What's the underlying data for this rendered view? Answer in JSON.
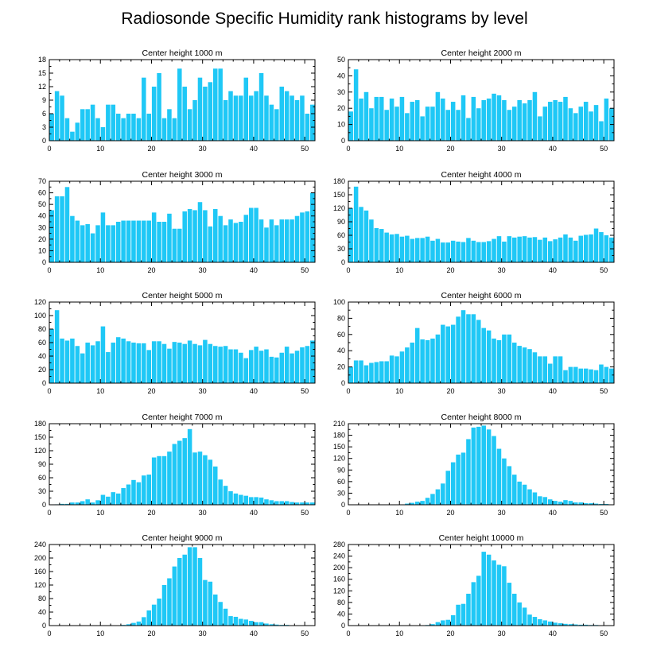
{
  "figure": {
    "title": "Radiosonde Specific Humidity rank histograms by level",
    "bar_color": "#1fc8f6",
    "axis_color": "#000000"
  },
  "chart_data": [
    {
      "type": "bar",
      "title": "Center height 1000 m",
      "xlabel": "",
      "ylabel": "",
      "xlim": [
        0,
        52
      ],
      "ylim": [
        0,
        18
      ],
      "xticks": [
        0,
        10,
        20,
        30,
        40,
        50
      ],
      "yticks": [
        0,
        3,
        6,
        9,
        12,
        15,
        18
      ],
      "x": [
        0,
        1,
        2,
        3,
        4,
        5,
        6,
        7,
        8,
        9,
        10,
        11,
        12,
        13,
        14,
        15,
        16,
        17,
        18,
        19,
        20,
        21,
        22,
        23,
        24,
        25,
        26,
        27,
        28,
        29,
        30,
        31,
        32,
        33,
        34,
        35,
        36,
        37,
        38,
        39,
        40,
        41,
        42,
        43,
        44,
        45,
        46,
        47,
        48,
        49,
        50,
        51
      ],
      "values": [
        6,
        11,
        10,
        5,
        2,
        4,
        7,
        7,
        8,
        5,
        3,
        8,
        8,
        6,
        5,
        6,
        6,
        5,
        14,
        6,
        12,
        15,
        5,
        7,
        5,
        16,
        12,
        7,
        9,
        14,
        12,
        13,
        16,
        16,
        9,
        11,
        10,
        10,
        14,
        10,
        11,
        15,
        10,
        8,
        7,
        12,
        11,
        10,
        9,
        10,
        6,
        8
      ]
    },
    {
      "type": "bar",
      "title": "Center height 2000 m",
      "xlabel": "",
      "ylabel": "",
      "xlim": [
        0,
        52
      ],
      "ylim": [
        0,
        50
      ],
      "xticks": [
        0,
        10,
        20,
        30,
        40,
        50
      ],
      "yticks": [
        0,
        10,
        20,
        30,
        40,
        50
      ],
      "x": [
        0,
        1,
        2,
        3,
        4,
        5,
        6,
        7,
        8,
        9,
        10,
        11,
        12,
        13,
        14,
        15,
        16,
        17,
        18,
        19,
        20,
        21,
        22,
        23,
        24,
        25,
        26,
        27,
        28,
        29,
        30,
        31,
        32,
        33,
        34,
        35,
        36,
        37,
        38,
        39,
        40,
        41,
        42,
        43,
        44,
        45,
        46,
        47,
        48,
        49,
        50,
        51
      ],
      "values": [
        18,
        44,
        26,
        30,
        20,
        27,
        27,
        19,
        26,
        21,
        27,
        17,
        24,
        25,
        15,
        21,
        21,
        30,
        26,
        19,
        24,
        19,
        28,
        14,
        27,
        20,
        25,
        26,
        29,
        28,
        25,
        19,
        21,
        25,
        23,
        25,
        30,
        15,
        21,
        24,
        25,
        24,
        27,
        20,
        17,
        21,
        24,
        18,
        22,
        12,
        26,
        20
      ]
    },
    {
      "type": "bar",
      "title": "Center height 3000 m",
      "xlabel": "",
      "ylabel": "",
      "xlim": [
        0,
        52
      ],
      "ylim": [
        0,
        70
      ],
      "xticks": [
        0,
        10,
        20,
        30,
        40,
        50
      ],
      "yticks": [
        0,
        10,
        20,
        30,
        40,
        50,
        60,
        70
      ],
      "x": [
        0,
        1,
        2,
        3,
        4,
        5,
        6,
        7,
        8,
        9,
        10,
        11,
        12,
        13,
        14,
        15,
        16,
        17,
        18,
        19,
        20,
        21,
        22,
        23,
        24,
        25,
        26,
        27,
        28,
        29,
        30,
        31,
        32,
        33,
        34,
        35,
        36,
        37,
        38,
        39,
        40,
        41,
        42,
        43,
        44,
        45,
        46,
        47,
        48,
        49,
        50,
        51
      ],
      "values": [
        45,
        57,
        57,
        65,
        40,
        36,
        32,
        33,
        25,
        32,
        43,
        32,
        32,
        35,
        36,
        36,
        36,
        36,
        36,
        36,
        43,
        35,
        35,
        42,
        29,
        29,
        44,
        46,
        45,
        52,
        45,
        31,
        46,
        40,
        32,
        37,
        34,
        35,
        41,
        47,
        47,
        37,
        30,
        37,
        32,
        37,
        37,
        37,
        40,
        43,
        44,
        60
      ]
    },
    {
      "type": "bar",
      "title": "Center height 4000 m",
      "xlabel": "",
      "ylabel": "",
      "xlim": [
        0,
        52
      ],
      "ylim": [
        0,
        180
      ],
      "xticks": [
        0,
        10,
        20,
        30,
        40,
        50
      ],
      "yticks": [
        0,
        30,
        60,
        90,
        120,
        150,
        180
      ],
      "x": [
        0,
        1,
        2,
        3,
        4,
        5,
        6,
        7,
        8,
        9,
        10,
        11,
        12,
        13,
        14,
        15,
        16,
        17,
        18,
        19,
        20,
        21,
        22,
        23,
        24,
        25,
        26,
        27,
        28,
        29,
        30,
        31,
        32,
        33,
        34,
        35,
        36,
        37,
        38,
        39,
        40,
        41,
        42,
        43,
        44,
        45,
        46,
        47,
        48,
        49,
        50,
        51
      ],
      "values": [
        120,
        168,
        123,
        115,
        95,
        76,
        74,
        66,
        62,
        63,
        57,
        59,
        52,
        54,
        54,
        57,
        48,
        52,
        44,
        44,
        48,
        46,
        45,
        54,
        48,
        45,
        45,
        47,
        52,
        58,
        46,
        58,
        55,
        57,
        58,
        55,
        56,
        50,
        55,
        47,
        51,
        55,
        62,
        55,
        48,
        59,
        61,
        62,
        75,
        67,
        60,
        55
      ]
    },
    {
      "type": "bar",
      "title": "Center height 5000 m",
      "xlabel": "",
      "ylabel": "",
      "xlim": [
        0,
        52
      ],
      "ylim": [
        0,
        120
      ],
      "xticks": [
        0,
        10,
        20,
        30,
        40,
        50
      ],
      "yticks": [
        0,
        20,
        40,
        60,
        80,
        100,
        120
      ],
      "x": [
        0,
        1,
        2,
        3,
        4,
        5,
        6,
        7,
        8,
        9,
        10,
        11,
        12,
        13,
        14,
        15,
        16,
        17,
        18,
        19,
        20,
        21,
        22,
        23,
        24,
        25,
        26,
        27,
        28,
        29,
        30,
        31,
        32,
        33,
        34,
        35,
        36,
        37,
        38,
        39,
        40,
        41,
        42,
        43,
        44,
        45,
        46,
        47,
        48,
        49,
        50,
        51
      ],
      "values": [
        80,
        108,
        66,
        63,
        66,
        55,
        44,
        60,
        56,
        62,
        84,
        46,
        60,
        68,
        66,
        62,
        60,
        59,
        59,
        49,
        62,
        62,
        58,
        51,
        61,
        60,
        58,
        63,
        58,
        56,
        64,
        58,
        55,
        54,
        55,
        50,
        50,
        45,
        37,
        49,
        54,
        48,
        50,
        39,
        38,
        45,
        54,
        44,
        48,
        53,
        55,
        63
      ]
    },
    {
      "type": "bar",
      "title": "Center height 6000 m",
      "xlabel": "",
      "ylabel": "",
      "xlim": [
        0,
        52
      ],
      "ylim": [
        0,
        100
      ],
      "xticks": [
        0,
        10,
        20,
        30,
        40,
        50
      ],
      "yticks": [
        0,
        20,
        40,
        60,
        80,
        100
      ],
      "x": [
        0,
        1,
        2,
        3,
        4,
        5,
        6,
        7,
        8,
        9,
        10,
        11,
        12,
        13,
        14,
        15,
        16,
        17,
        18,
        19,
        20,
        21,
        22,
        23,
        24,
        25,
        26,
        27,
        28,
        29,
        30,
        31,
        32,
        33,
        34,
        35,
        36,
        37,
        38,
        39,
        40,
        41,
        42,
        43,
        44,
        45,
        46,
        47,
        48,
        49,
        50,
        51
      ],
      "values": [
        20,
        28,
        28,
        22,
        25,
        26,
        27,
        27,
        34,
        33,
        39,
        44,
        50,
        68,
        54,
        53,
        55,
        60,
        72,
        70,
        72,
        82,
        90,
        85,
        85,
        78,
        68,
        65,
        55,
        53,
        60,
        60,
        50,
        46,
        44,
        42,
        38,
        33,
        33,
        24,
        33,
        33,
        16,
        20,
        20,
        18,
        18,
        17,
        16,
        23,
        20,
        18
      ]
    },
    {
      "type": "bar",
      "title": "Center height 7000 m",
      "xlabel": "",
      "ylabel": "",
      "xlim": [
        0,
        52
      ],
      "ylim": [
        0,
        180
      ],
      "xticks": [
        0,
        10,
        20,
        30,
        40,
        50
      ],
      "yticks": [
        0,
        30,
        60,
        90,
        120,
        150,
        180
      ],
      "x": [
        0,
        1,
        2,
        3,
        4,
        5,
        6,
        7,
        8,
        9,
        10,
        11,
        12,
        13,
        14,
        15,
        16,
        17,
        18,
        19,
        20,
        21,
        22,
        23,
        24,
        25,
        26,
        27,
        28,
        29,
        30,
        31,
        32,
        33,
        34,
        35,
        36,
        37,
        38,
        39,
        40,
        41,
        42,
        43,
        44,
        45,
        46,
        47,
        48,
        49,
        50,
        51
      ],
      "values": [
        0,
        1,
        2,
        2,
        5,
        5,
        8,
        12,
        5,
        10,
        22,
        18,
        28,
        25,
        37,
        45,
        55,
        50,
        65,
        67,
        105,
        108,
        108,
        118,
        135,
        142,
        148,
        168,
        116,
        118,
        110,
        100,
        85,
        56,
        42,
        30,
        25,
        22,
        20,
        17,
        17,
        16,
        12,
        10,
        8,
        8,
        8,
        6,
        5,
        5,
        5,
        5
      ]
    },
    {
      "type": "bar",
      "title": "Center height 8000 m",
      "xlabel": "",
      "ylabel": "",
      "xlim": [
        0,
        52
      ],
      "ylim": [
        0,
        210
      ],
      "xticks": [
        0,
        10,
        20,
        30,
        40,
        50
      ],
      "yticks": [
        0,
        30,
        60,
        90,
        120,
        150,
        180,
        210
      ],
      "x": [
        0,
        1,
        2,
        3,
        4,
        5,
        6,
        7,
        8,
        9,
        10,
        11,
        12,
        13,
        14,
        15,
        16,
        17,
        18,
        19,
        20,
        21,
        22,
        23,
        24,
        25,
        26,
        27,
        28,
        29,
        30,
        31,
        32,
        33,
        34,
        35,
        36,
        37,
        38,
        39,
        40,
        41,
        42,
        43,
        44,
        45,
        46,
        47,
        48,
        49,
        50,
        51
      ],
      "values": [
        0,
        0,
        0,
        0,
        0,
        0,
        0,
        0,
        0,
        0,
        1,
        3,
        5,
        8,
        10,
        18,
        28,
        40,
        55,
        88,
        110,
        130,
        135,
        170,
        200,
        202,
        205,
        195,
        178,
        145,
        120,
        100,
        78,
        60,
        52,
        40,
        32,
        22,
        20,
        14,
        10,
        8,
        12,
        10,
        6,
        6,
        4,
        4,
        3,
        2,
        2,
        1
      ]
    },
    {
      "type": "bar",
      "title": "Center height 9000 m",
      "xlabel": "",
      "ylabel": "",
      "xlim": [
        0,
        52
      ],
      "ylim": [
        0,
        240
      ],
      "xticks": [
        0,
        10,
        20,
        30,
        40,
        50
      ],
      "yticks": [
        0,
        40,
        80,
        120,
        160,
        200,
        240
      ],
      "x": [
        0,
        1,
        2,
        3,
        4,
        5,
        6,
        7,
        8,
        9,
        10,
        11,
        12,
        13,
        14,
        15,
        16,
        17,
        18,
        19,
        20,
        21,
        22,
        23,
        24,
        25,
        26,
        27,
        28,
        29,
        30,
        31,
        32,
        33,
        34,
        35,
        36,
        37,
        38,
        39,
        40,
        41,
        42,
        43,
        44,
        45,
        46,
        47,
        48,
        49,
        50,
        51
      ],
      "values": [
        0,
        0,
        0,
        0,
        0,
        0,
        0,
        0,
        0,
        0,
        0,
        0,
        0,
        1,
        2,
        4,
        8,
        12,
        25,
        45,
        62,
        80,
        120,
        140,
        175,
        200,
        210,
        232,
        232,
        200,
        135,
        130,
        92,
        70,
        50,
        28,
        26,
        20,
        18,
        14,
        10,
        10,
        6,
        4,
        3,
        2,
        2,
        1,
        1,
        0,
        0,
        0
      ]
    },
    {
      "type": "bar",
      "title": "Center height 10000 m",
      "xlabel": "",
      "ylabel": "",
      "xlim": [
        0,
        52
      ],
      "ylim": [
        0,
        280
      ],
      "xticks": [
        0,
        10,
        20,
        30,
        40,
        50
      ],
      "yticks": [
        0,
        40,
        80,
        120,
        160,
        200,
        240,
        280
      ],
      "x": [
        0,
        1,
        2,
        3,
        4,
        5,
        6,
        7,
        8,
        9,
        10,
        11,
        12,
        13,
        14,
        15,
        16,
        17,
        18,
        19,
        20,
        21,
        22,
        23,
        24,
        25,
        26,
        27,
        28,
        29,
        30,
        31,
        32,
        33,
        34,
        35,
        36,
        37,
        38,
        39,
        40,
        41,
        42,
        43,
        44,
        45,
        46,
        47,
        48,
        49,
        50,
        51
      ],
      "values": [
        0,
        0,
        0,
        0,
        0,
        0,
        0,
        0,
        0,
        0,
        0,
        0,
        0,
        0,
        1,
        2,
        5,
        12,
        18,
        20,
        36,
        72,
        75,
        110,
        150,
        172,
        255,
        245,
        225,
        210,
        205,
        148,
        110,
        80,
        62,
        38,
        30,
        22,
        18,
        14,
        10,
        8,
        6,
        5,
        4,
        3,
        3,
        2,
        2,
        1,
        1,
        1
      ]
    }
  ]
}
